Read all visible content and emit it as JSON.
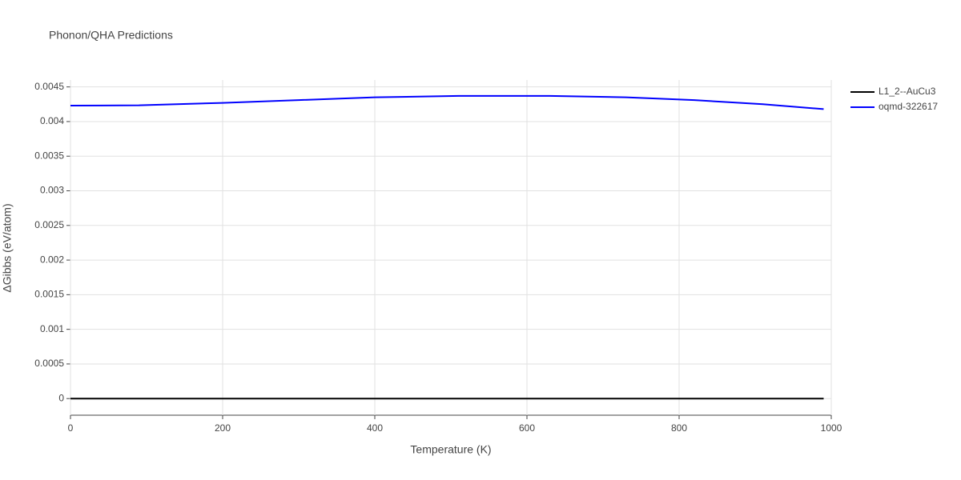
{
  "chart_data": {
    "type": "line",
    "title": "Phonon/QHA Predictions",
    "x_label": "Temperature (K)",
    "y_label": "ΔGibbs (eV/atom)",
    "x": [
      0,
      90,
      200,
      300,
      400,
      510,
      630,
      730,
      820,
      910,
      990
    ],
    "series": [
      {
        "name": "L1_2--AuCu3",
        "color": "#000000",
        "values": [
          0,
          0,
          0,
          0,
          0,
          0,
          0,
          0,
          0,
          0,
          0
        ]
      },
      {
        "name": "oqmd-322617",
        "color": "#0000ff",
        "values": [
          0.00423,
          0.004235,
          0.00427,
          0.00431,
          0.00435,
          0.00437,
          0.00437,
          0.00435,
          0.00431,
          0.00425,
          0.00418
        ]
      }
    ],
    "xlim": [
      0,
      1000
    ],
    "xticks": [
      0,
      200,
      400,
      600,
      800,
      1000
    ],
    "ylim": [
      -0.00024,
      0.0046
    ],
    "yticks": [
      0,
      0.0005,
      0.001,
      0.0015,
      0.002,
      0.0025,
      0.003,
      0.0035,
      0.004,
      0.0045
    ],
    "grid": true
  }
}
